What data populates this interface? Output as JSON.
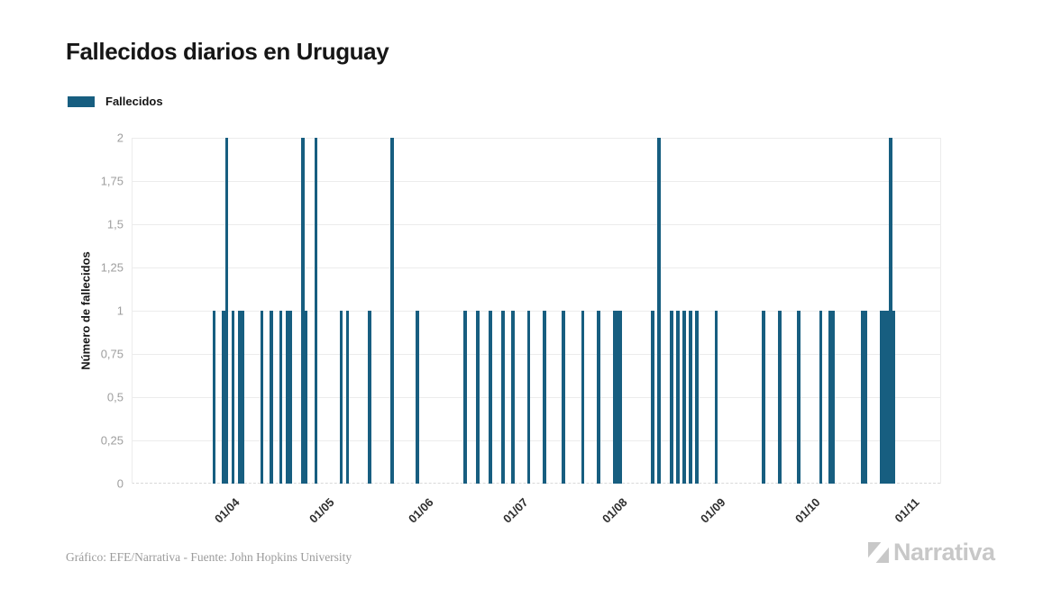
{
  "chart_data": {
    "type": "bar",
    "title": "Fallecidos diarios en Uruguay",
    "series_name": "Fallecidos",
    "ylabel": "Número de fallecidos",
    "bar_color": "#175E80",
    "ylim": [
      0,
      2
    ],
    "grid": true,
    "legend_position": "top-left",
    "yticks": [
      {
        "value": 0.0,
        "label": "0"
      },
      {
        "value": 0.25,
        "label": "0,25"
      },
      {
        "value": 0.5,
        "label": "0,5"
      },
      {
        "value": 0.75,
        "label": "0,75"
      },
      {
        "value": 1.0,
        "label": "1"
      },
      {
        "value": 1.25,
        "label": "1,25"
      },
      {
        "value": 1.5,
        "label": "1,5"
      },
      {
        "value": 1.75,
        "label": "1,75"
      },
      {
        "value": 2.0,
        "label": "2"
      }
    ],
    "x_start_date": "2020-03-28",
    "xticks": [
      {
        "day": 4,
        "label": "01/04"
      },
      {
        "day": 34,
        "label": "01/05"
      },
      {
        "day": 65,
        "label": "01/06"
      },
      {
        "day": 95,
        "label": "01/07"
      },
      {
        "day": 126,
        "label": "01/08"
      },
      {
        "day": 157,
        "label": "01/09"
      },
      {
        "day": 187,
        "label": "01/10"
      },
      {
        "day": 218,
        "label": "01/11"
      }
    ],
    "points": [
      {
        "date": "2020-03-28",
        "day": 0,
        "value": 1
      },
      {
        "date": "2020-03-31",
        "day": 3,
        "value": 1
      },
      {
        "date": "2020-04-01",
        "day": 4,
        "value": 2
      },
      {
        "date": "2020-04-03",
        "day": 6,
        "value": 1
      },
      {
        "date": "2020-04-05",
        "day": 8,
        "value": 1
      },
      {
        "date": "2020-04-06",
        "day": 9,
        "value": 1
      },
      {
        "date": "2020-04-12",
        "day": 15,
        "value": 1
      },
      {
        "date": "2020-04-15",
        "day": 18,
        "value": 1
      },
      {
        "date": "2020-04-18",
        "day": 21,
        "value": 1
      },
      {
        "date": "2020-04-20",
        "day": 23,
        "value": 1
      },
      {
        "date": "2020-04-21",
        "day": 24,
        "value": 1
      },
      {
        "date": "2020-04-25",
        "day": 28,
        "value": 2
      },
      {
        "date": "2020-04-26",
        "day": 29,
        "value": 1
      },
      {
        "date": "2020-04-29",
        "day": 32,
        "value": 2
      },
      {
        "date": "2020-05-07",
        "day": 40,
        "value": 1
      },
      {
        "date": "2020-05-09",
        "day": 42,
        "value": 1
      },
      {
        "date": "2020-05-16",
        "day": 49,
        "value": 1
      },
      {
        "date": "2020-05-23",
        "day": 56,
        "value": 2
      },
      {
        "date": "2020-05-31",
        "day": 64,
        "value": 1
      },
      {
        "date": "2020-06-15",
        "day": 79,
        "value": 1
      },
      {
        "date": "2020-06-19",
        "day": 83,
        "value": 1
      },
      {
        "date": "2020-06-23",
        "day": 87,
        "value": 1
      },
      {
        "date": "2020-06-27",
        "day": 91,
        "value": 1
      },
      {
        "date": "2020-06-30",
        "day": 94,
        "value": 1
      },
      {
        "date": "2020-07-05",
        "day": 99,
        "value": 1
      },
      {
        "date": "2020-07-10",
        "day": 104,
        "value": 1
      },
      {
        "date": "2020-07-16",
        "day": 110,
        "value": 1
      },
      {
        "date": "2020-07-22",
        "day": 116,
        "value": 1
      },
      {
        "date": "2020-07-27",
        "day": 121,
        "value": 1
      },
      {
        "date": "2020-08-01",
        "day": 126,
        "value": 1
      },
      {
        "date": "2020-08-02",
        "day": 127,
        "value": 1
      },
      {
        "date": "2020-08-03",
        "day": 128,
        "value": 1
      },
      {
        "date": "2020-08-13",
        "day": 138,
        "value": 1
      },
      {
        "date": "2020-08-15",
        "day": 140,
        "value": 2
      },
      {
        "date": "2020-08-19",
        "day": 144,
        "value": 1
      },
      {
        "date": "2020-08-21",
        "day": 146,
        "value": 1
      },
      {
        "date": "2020-08-23",
        "day": 148,
        "value": 1
      },
      {
        "date": "2020-08-25",
        "day": 150,
        "value": 1
      },
      {
        "date": "2020-08-27",
        "day": 152,
        "value": 1
      },
      {
        "date": "2020-09-02",
        "day": 158,
        "value": 1
      },
      {
        "date": "2020-09-17",
        "day": 173,
        "value": 1
      },
      {
        "date": "2020-09-22",
        "day": 178,
        "value": 1
      },
      {
        "date": "2020-09-28",
        "day": 184,
        "value": 1
      },
      {
        "date": "2020-10-05",
        "day": 191,
        "value": 1
      },
      {
        "date": "2020-10-08",
        "day": 194,
        "value": 1
      },
      {
        "date": "2020-10-09",
        "day": 195,
        "value": 1
      },
      {
        "date": "2020-10-18",
        "day": 204,
        "value": 1
      },
      {
        "date": "2020-10-19",
        "day": 205,
        "value": 1
      },
      {
        "date": "2020-10-24",
        "day": 210,
        "value": 1
      },
      {
        "date": "2020-10-25",
        "day": 211,
        "value": 1
      },
      {
        "date": "2020-10-26",
        "day": 212,
        "value": 1
      },
      {
        "date": "2020-10-27",
        "day": 213,
        "value": 2
      },
      {
        "date": "2020-10-28",
        "day": 214,
        "value": 1
      }
    ]
  },
  "footer": {
    "attribution": "Gráfico: EFE/Narrativa - Fuente: John Hopkins University",
    "logo_text": "Narrativa"
  }
}
